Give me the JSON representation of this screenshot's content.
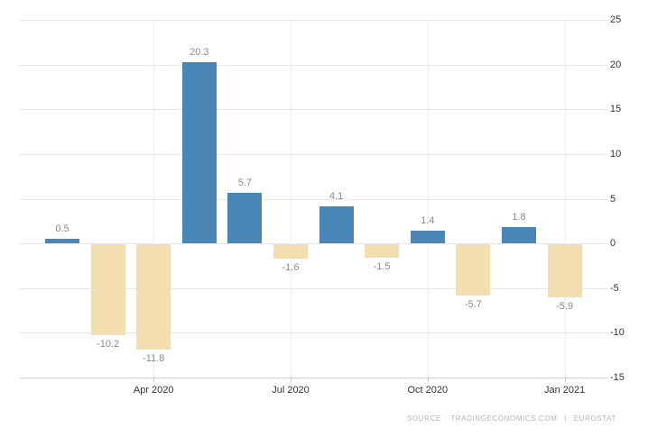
{
  "chart_data": {
    "type": "bar",
    "title": "",
    "xlabel": "",
    "ylabel": "",
    "values": [
      0.5,
      -10.2,
      -11.8,
      20.3,
      5.7,
      -1.6,
      4.1,
      -1.5,
      1.4,
      -5.7,
      1.8,
      -5.9
    ],
    "bar_value_labels": [
      "0.5",
      "-10.2",
      "-11.8",
      "20.3",
      "5.7",
      "-1.6",
      "4.1",
      "-1.5",
      "1.4",
      "-5.7",
      "1.8",
      "-5.9"
    ],
    "x_ticks": [
      {
        "label": "Apr 2020",
        "index": 2
      },
      {
        "label": "Jul 2020",
        "index": 5
      },
      {
        "label": "Oct 2020",
        "index": 8
      },
      {
        "label": "Jan 2021",
        "index": 11
      }
    ],
    "y_ticks": [
      25,
      20,
      15,
      10,
      5,
      0,
      -5,
      -10,
      -15
    ],
    "ylim": [
      -15,
      25
    ],
    "grid": true,
    "legend": "none",
    "colors": {
      "positive_bar": "#4a87b6",
      "negative_bar": "#f3deb0",
      "value_label": "#8a8a8a",
      "axis_label": "#343434",
      "gridline": "#e7e7e7"
    }
  },
  "source": {
    "text": "SOURCE: TRADINGECONOMICS.COM | EUROSTAT"
  }
}
